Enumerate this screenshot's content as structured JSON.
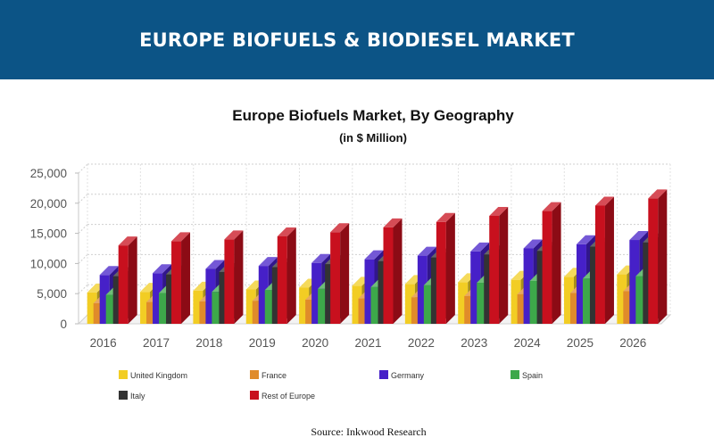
{
  "header": {
    "title": "EUROPE BIOFUELS & BIODIESEL MARKET"
  },
  "chart_data": {
    "type": "bar",
    "title": "Europe Biofuels Market, By Geography",
    "subtitle": "(in $ Million)",
    "xlabel": "",
    "ylabel": "",
    "ylim": [
      0,
      25000
    ],
    "yticks": [
      "0",
      "5,000",
      "10,000",
      "15,000",
      "20,000",
      "25,000"
    ],
    "grid": true,
    "legend_position": "bottom",
    "categories": [
      "2016",
      "2017",
      "2018",
      "2019",
      "2020",
      "2021",
      "2022",
      "2023",
      "2024",
      "2025",
      "2026"
    ],
    "series": [
      {
        "name": "United Kingdom",
        "color": "#f2cd24",
        "values": [
          5200,
          5300,
          5500,
          5700,
          6000,
          6300,
          6600,
          6900,
          7300,
          7800,
          8200
        ]
      },
      {
        "name": "France",
        "color": "#e08b2a",
        "values": [
          3400,
          3600,
          3700,
          3800,
          4000,
          4200,
          4400,
          4600,
          4900,
          5100,
          5400
        ]
      },
      {
        "name": "Germany",
        "color": "#4620c8",
        "values": [
          8100,
          8400,
          9100,
          9600,
          10100,
          10700,
          11300,
          12000,
          12500,
          13200,
          13900
        ]
      },
      {
        "name": "Spain",
        "color": "#3da84a",
        "values": [
          4800,
          5100,
          5300,
          5600,
          5800,
          6100,
          6400,
          6800,
          7100,
          7500,
          7900
        ]
      },
      {
        "name": "Italy",
        "color": "#333333",
        "values": [
          7900,
          8200,
          8600,
          9400,
          9900,
          10400,
          11000,
          11500,
          12100,
          12800,
          13500
        ]
      },
      {
        "name": "Rest of Europe",
        "color": "#c8101e",
        "values": [
          13000,
          13700,
          14000,
          14500,
          15200,
          16000,
          16900,
          17900,
          18700,
          19600,
          20800
        ]
      }
    ]
  },
  "source": "Source: Inkwood Research"
}
